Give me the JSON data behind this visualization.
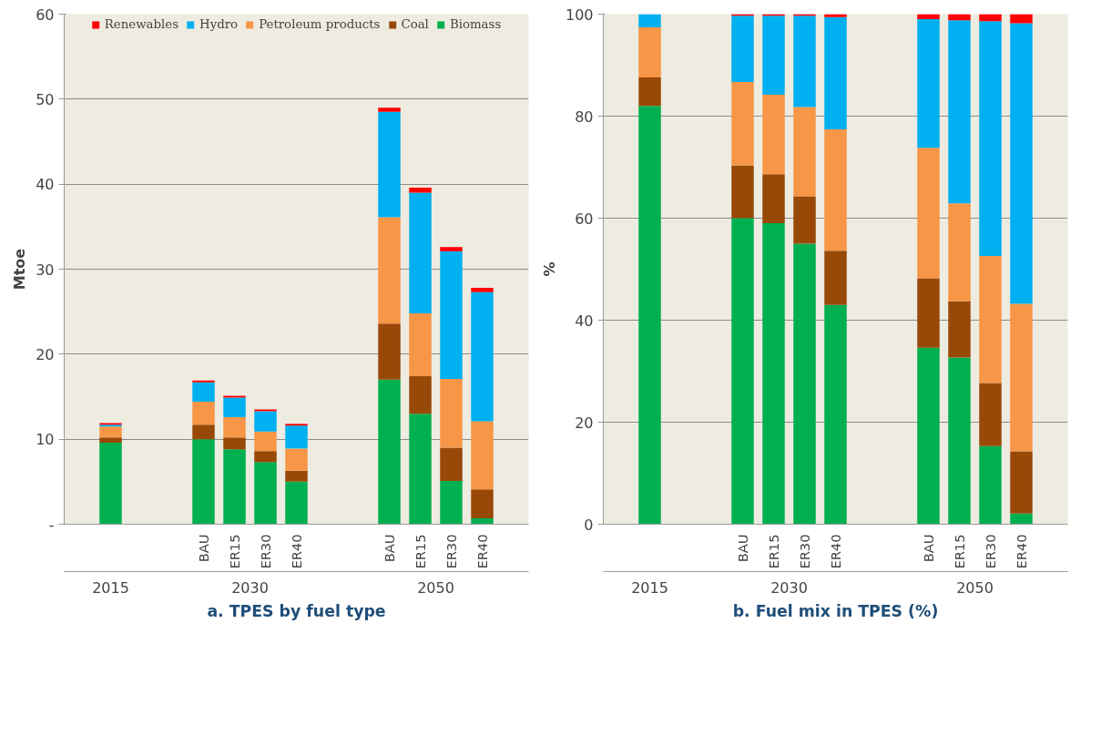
{
  "chart_data": [
    {
      "type": "bar",
      "stacked": true,
      "title": "a. TPES by fuel type",
      "ylabel": "Mtoe",
      "categories": [
        null,
        null,
        null,
        null,
        "BAU",
        "ER15",
        "ER30",
        "ER40",
        null,
        null,
        "BAU",
        "ER15",
        "ER30",
        "ER40",
        null
      ],
      "annotations": [
        "2015",
        "2030",
        "2050"
      ],
      "series": [
        {
          "name": "Biomass",
          "color": "#00b050",
          "values": [
            null,
            9.6,
            null,
            null,
            10.0,
            8.8,
            7.3,
            5.0,
            null,
            null,
            17.0,
            13.0,
            5.1,
            0.7,
            null
          ]
        },
        {
          "name": "Coal",
          "color": "#984807",
          "values": [
            null,
            0.6,
            null,
            null,
            1.7,
            1.4,
            1.3,
            1.3,
            null,
            null,
            6.6,
            4.4,
            3.9,
            3.4,
            null
          ]
        },
        {
          "name": "Petroleum products",
          "color": "#f79646",
          "values": [
            null,
            1.3,
            null,
            null,
            2.7,
            2.4,
            2.3,
            2.6,
            null,
            null,
            12.5,
            7.4,
            8.1,
            8.0,
            null
          ]
        },
        {
          "name": "Hydro",
          "color": "#00b0f0",
          "values": [
            null,
            0.2,
            null,
            null,
            2.3,
            2.3,
            2.4,
            2.7,
            null,
            null,
            12.4,
            14.2,
            15.0,
            15.2,
            null
          ]
        },
        {
          "name": "Renewables",
          "color": "#ff0000",
          "values": [
            null,
            0.2,
            null,
            null,
            0.2,
            0.2,
            0.2,
            0.2,
            null,
            null,
            0.5,
            0.6,
            0.5,
            0.5,
            null
          ]
        }
      ],
      "ylim": [
        0,
        60
      ],
      "yticks": [
        {
          "value": 0,
          "label": "-"
        },
        10,
        20,
        30,
        40,
        50,
        60
      ],
      "grid": "y",
      "legend": "top"
    },
    {
      "type": "bar",
      "stacked": true,
      "title": "b. Fuel mix in TPES (%)",
      "ylabel": "%",
      "categories": [
        null,
        null,
        null,
        null,
        "BAU",
        "ER15",
        "ER30",
        "ER40",
        null,
        null,
        "BAU",
        "ER15",
        "ER30",
        "ER40",
        null
      ],
      "annotations": [
        "2015",
        "2030",
        "2050"
      ],
      "series": [
        {
          "color": "#00b050",
          "values": [
            null,
            82.0,
            null,
            null,
            60.0,
            59.0,
            55.0,
            43.0,
            null,
            null,
            34.6,
            32.7,
            15.3,
            2.1,
            null
          ]
        },
        {
          "color": "#984807",
          "values": [
            null,
            5.6,
            null,
            null,
            10.3,
            9.6,
            9.3,
            10.6,
            null,
            null,
            13.6,
            11.0,
            12.4,
            12.2,
            null
          ]
        },
        {
          "color": "#f79646",
          "values": [
            null,
            9.8,
            null,
            null,
            16.4,
            15.6,
            17.5,
            23.8,
            null,
            null,
            25.6,
            19.2,
            24.9,
            28.9,
            null
          ]
        },
        {
          "color": "#00b0f0",
          "values": [
            null,
            2.6,
            null,
            null,
            13.0,
            15.5,
            17.9,
            22.0,
            null,
            null,
            25.2,
            35.9,
            46.0,
            55.0,
            null
          ]
        },
        {
          "color": "#ff0000",
          "values": [
            null,
            0.0,
            null,
            null,
            0.3,
            0.3,
            0.3,
            0.6,
            null,
            null,
            1.0,
            1.2,
            1.4,
            1.8,
            null
          ]
        }
      ],
      "ylim": [
        0,
        100
      ],
      "yticks": [
        0,
        20,
        40,
        60,
        80,
        100
      ],
      "grid": "y"
    }
  ]
}
